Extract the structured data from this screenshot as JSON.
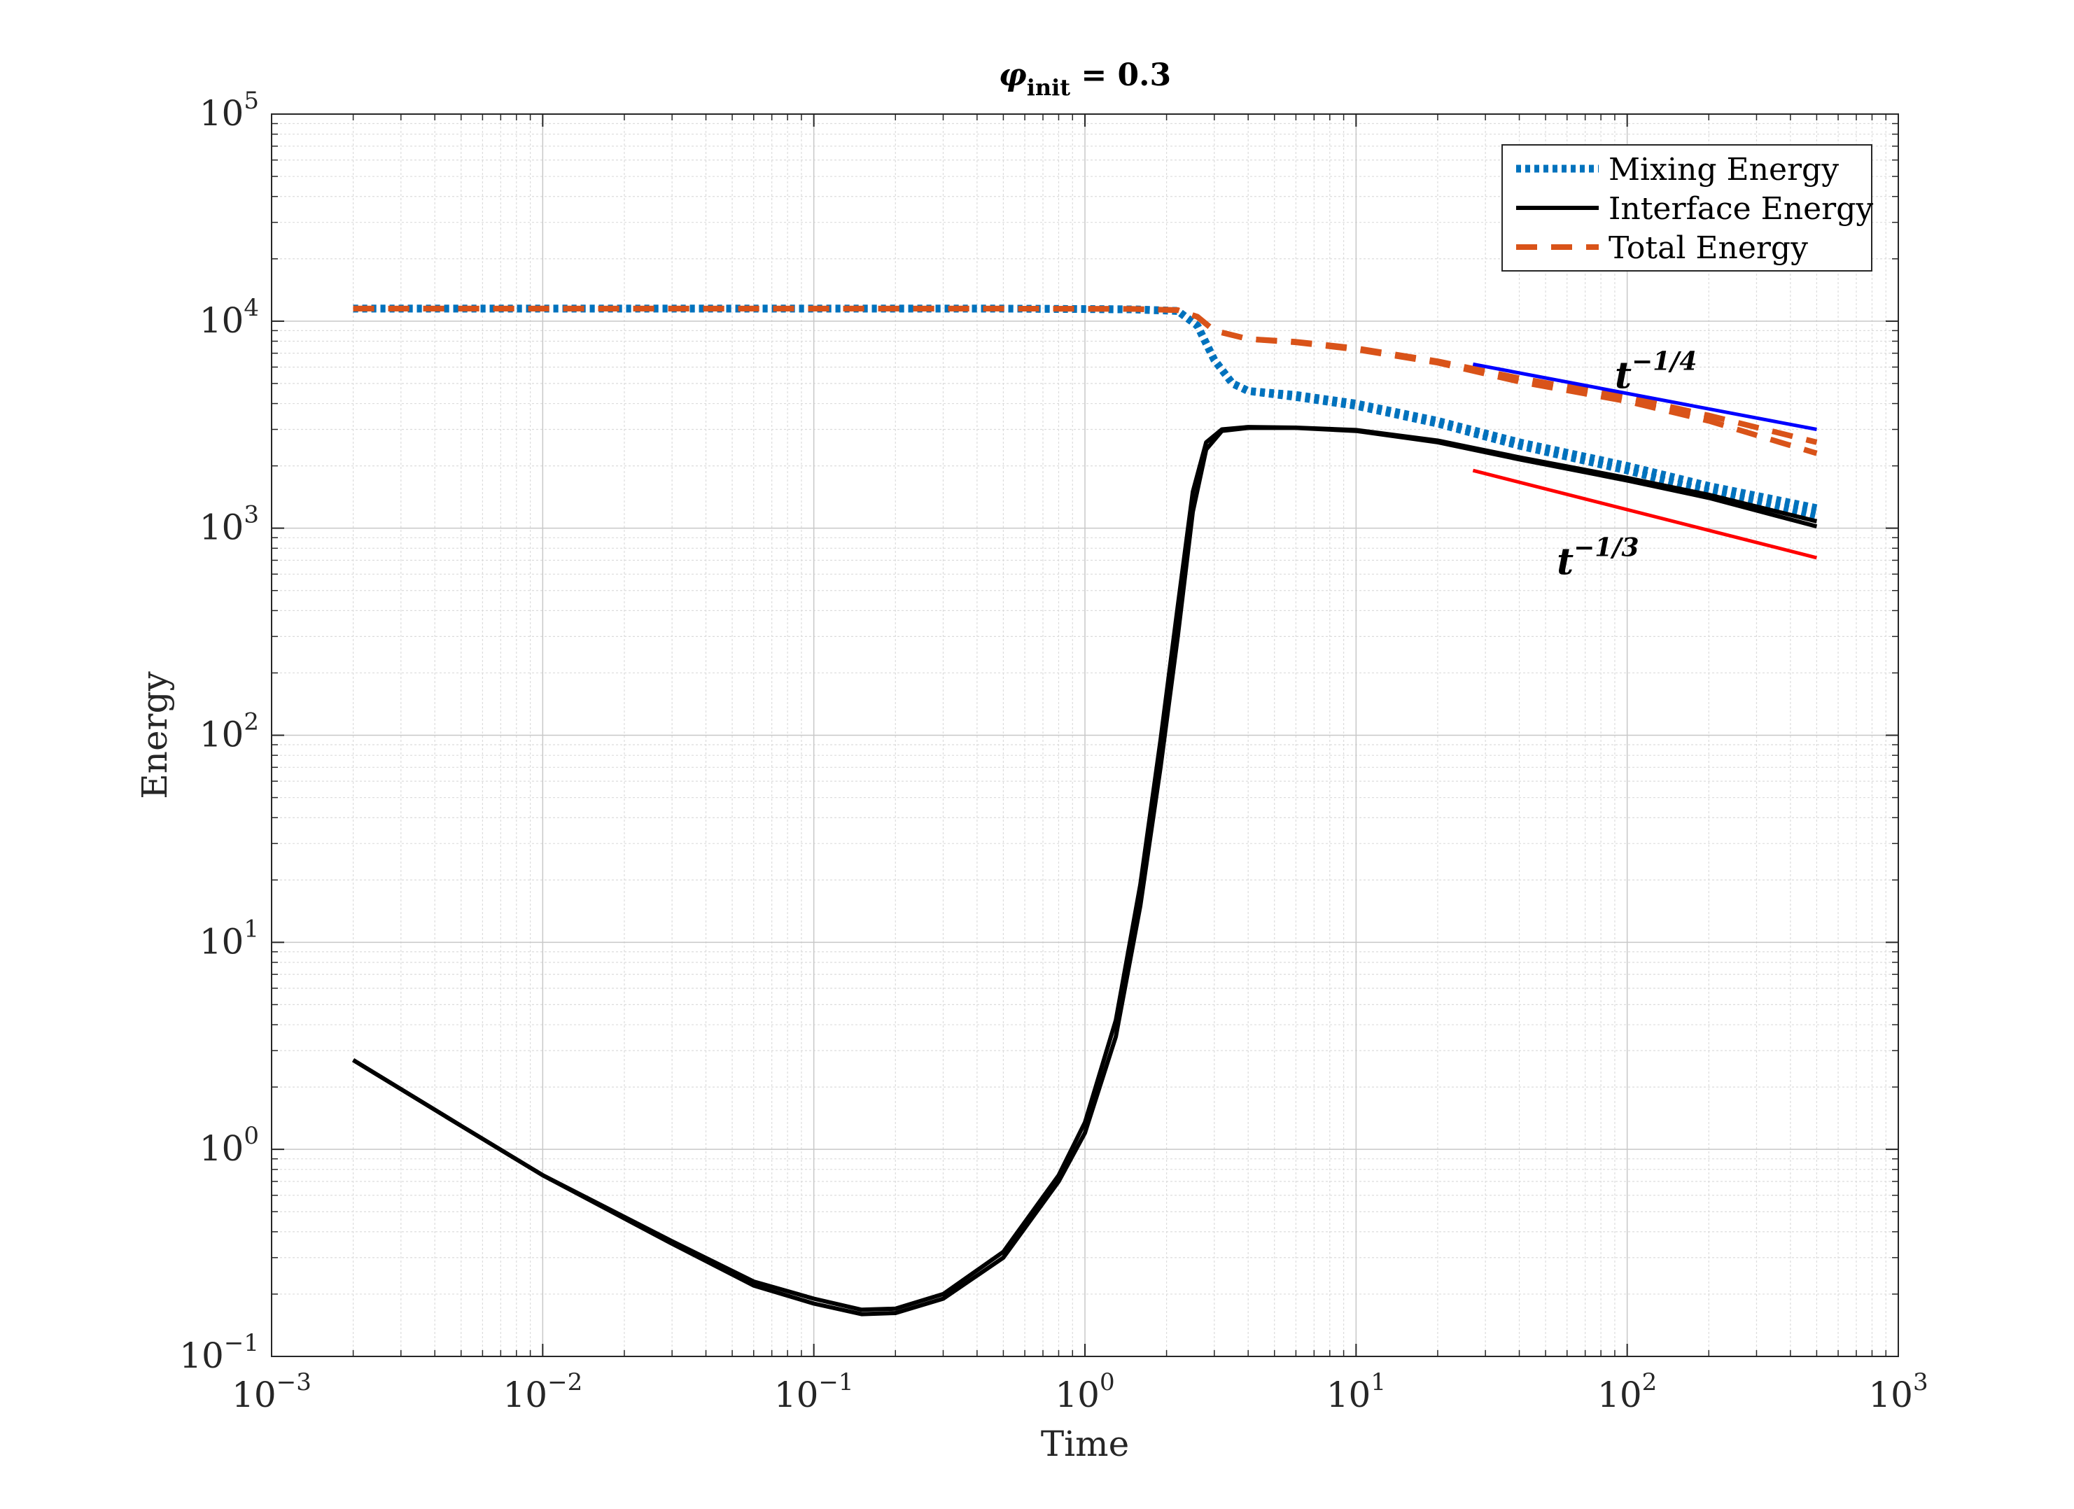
{
  "chart_data": {
    "type": "line",
    "title": {
      "symbol": "φ",
      "subscript": "init",
      "rest": " = 0.3"
    },
    "xlabel": "Time",
    "ylabel": "Energy",
    "xscale": "log",
    "yscale": "log",
    "xlim": [
      0.001,
      1000
    ],
    "ylim": [
      0.1,
      100000
    ],
    "x_ticks": [
      {
        "base": "10",
        "exp": "−3"
      },
      {
        "base": "10",
        "exp": "−2"
      },
      {
        "base": "10",
        "exp": "−1"
      },
      {
        "base": "10",
        "exp": "0"
      },
      {
        "base": "10",
        "exp": "1"
      },
      {
        "base": "10",
        "exp": "2"
      },
      {
        "base": "10",
        "exp": "3"
      }
    ],
    "y_ticks": [
      {
        "base": "10",
        "exp": "−1"
      },
      {
        "base": "10",
        "exp": "0"
      },
      {
        "base": "10",
        "exp": "1"
      },
      {
        "base": "10",
        "exp": "2"
      },
      {
        "base": "10",
        "exp": "3"
      },
      {
        "base": "10",
        "exp": "4"
      },
      {
        "base": "10",
        "exp": "5"
      }
    ],
    "grid": true,
    "legend_position": "top-right",
    "legend": [
      {
        "label": "Mixing Energy",
        "color": "#0072bd",
        "style": "dotted"
      },
      {
        "label": "Interface Energy",
        "color": "#000000",
        "style": "solid"
      },
      {
        "label": "Total Energy",
        "color": "#d95319",
        "style": "dashed"
      }
    ],
    "series": [
      {
        "name": "Mixing Energy",
        "color": "#0072bd",
        "style": "dotted",
        "points": [
          [
            0.002,
            11500
          ],
          [
            0.5,
            11500
          ],
          [
            1.5,
            11400
          ],
          [
            2.2,
            11200
          ],
          [
            2.6,
            9500
          ],
          [
            3.0,
            6500
          ],
          [
            3.5,
            5000
          ],
          [
            4.0,
            4600
          ],
          [
            6,
            4300
          ],
          [
            10,
            3900
          ],
          [
            20,
            3200
          ],
          [
            40,
            2500
          ],
          [
            100,
            1900
          ],
          [
            200,
            1500
          ],
          [
            500,
            1150
          ]
        ]
      },
      {
        "name": "Mixing Energy",
        "color": "#0072bd",
        "style": "dotted",
        "points": [
          [
            0.002,
            11500
          ],
          [
            0.5,
            11500
          ],
          [
            1.5,
            11400
          ],
          [
            2.2,
            11200
          ],
          [
            2.6,
            9500
          ],
          [
            3.0,
            6500
          ],
          [
            3.5,
            5000
          ],
          [
            4.0,
            4600
          ],
          [
            6,
            4400
          ],
          [
            10,
            4000
          ],
          [
            20,
            3300
          ],
          [
            40,
            2600
          ],
          [
            100,
            2000
          ],
          [
            200,
            1600
          ],
          [
            500,
            1250
          ]
        ]
      },
      {
        "name": "Interface Energy",
        "color": "#000000",
        "style": "solid",
        "points": [
          [
            0.002,
            2.7
          ],
          [
            0.005,
            1.3
          ],
          [
            0.01,
            0.75
          ],
          [
            0.03,
            0.35
          ],
          [
            0.06,
            0.22
          ],
          [
            0.1,
            0.18
          ],
          [
            0.15,
            0.16
          ],
          [
            0.2,
            0.162
          ],
          [
            0.3,
            0.19
          ],
          [
            0.5,
            0.3
          ],
          [
            0.8,
            0.7
          ],
          [
            1.0,
            1.2
          ],
          [
            1.3,
            3.5
          ],
          [
            1.6,
            15
          ],
          [
            1.9,
            70
          ],
          [
            2.2,
            300
          ],
          [
            2.5,
            1200
          ],
          [
            2.8,
            2400
          ],
          [
            3.2,
            2950
          ],
          [
            4.0,
            3050
          ],
          [
            6,
            3050
          ],
          [
            10,
            2950
          ],
          [
            20,
            2600
          ],
          [
            40,
            2150
          ],
          [
            100,
            1700
          ],
          [
            200,
            1400
          ],
          [
            500,
            1020
          ]
        ]
      },
      {
        "name": "Interface Energy",
        "color": "#000000",
        "style": "solid",
        "points": [
          [
            0.002,
            2.7
          ],
          [
            0.005,
            1.3
          ],
          [
            0.01,
            0.75
          ],
          [
            0.03,
            0.36
          ],
          [
            0.06,
            0.23
          ],
          [
            0.1,
            0.19
          ],
          [
            0.15,
            0.168
          ],
          [
            0.2,
            0.17
          ],
          [
            0.3,
            0.2
          ],
          [
            0.5,
            0.32
          ],
          [
            0.8,
            0.75
          ],
          [
            1.0,
            1.35
          ],
          [
            1.3,
            4.2
          ],
          [
            1.6,
            19
          ],
          [
            1.9,
            95
          ],
          [
            2.2,
            420
          ],
          [
            2.5,
            1500
          ],
          [
            2.8,
            2600
          ],
          [
            3.2,
            3000
          ],
          [
            4.0,
            3080
          ],
          [
            6,
            3060
          ],
          [
            10,
            2980
          ],
          [
            20,
            2650
          ],
          [
            40,
            2200
          ],
          [
            100,
            1750
          ],
          [
            200,
            1450
          ],
          [
            500,
            1080
          ]
        ]
      },
      {
        "name": "Total Energy",
        "color": "#d95319",
        "style": "dashed",
        "points": [
          [
            0.002,
            11500
          ],
          [
            0.5,
            11500
          ],
          [
            1.5,
            11450
          ],
          [
            2.2,
            11300
          ],
          [
            2.6,
            10500
          ],
          [
            3.0,
            9000
          ],
          [
            4.0,
            8200
          ],
          [
            6,
            7900
          ],
          [
            10,
            7300
          ],
          [
            20,
            6300
          ],
          [
            40,
            5100
          ],
          [
            100,
            4100
          ],
          [
            200,
            3300
          ],
          [
            500,
            2300
          ]
        ]
      },
      {
        "name": "Total Energy",
        "color": "#d95319",
        "style": "dashed",
        "points": [
          [
            0.002,
            11500
          ],
          [
            0.5,
            11500
          ],
          [
            1.5,
            11450
          ],
          [
            2.2,
            11300
          ],
          [
            2.6,
            10500
          ],
          [
            3.0,
            9000
          ],
          [
            4.0,
            8200
          ],
          [
            6,
            7950
          ],
          [
            10,
            7400
          ],
          [
            20,
            6400
          ],
          [
            40,
            5300
          ],
          [
            100,
            4300
          ],
          [
            200,
            3500
          ],
          [
            500,
            2600
          ]
        ]
      }
    ],
    "reference_lines": [
      {
        "color": "#0000ff",
        "points": [
          [
            27,
            6200
          ],
          [
            500,
            3000
          ]
        ]
      },
      {
        "color": "#ff0000",
        "points": [
          [
            27,
            1900
          ],
          [
            500,
            720
          ]
        ]
      }
    ],
    "annotations": [
      {
        "base": "t",
        "exp": "−1/4",
        "at": [
          90,
          4750
        ]
      },
      {
        "base": "t",
        "exp": "−1/3",
        "at": [
          55,
          600
        ]
      }
    ]
  }
}
